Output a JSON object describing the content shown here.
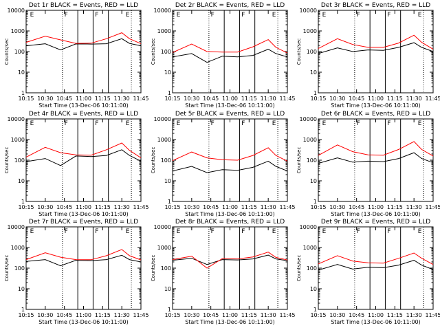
{
  "chart_data": [
    {
      "type": "line",
      "title": "Det 1r BLACK = Events, RED = LLD",
      "xlabel": "Start Time (13-Dec-06 10:11:00)",
      "ylabel": "Counts/sec",
      "x_ticks": [
        "10:15",
        "10:30",
        "10:45",
        "11:00",
        "11:15",
        "11:30",
        "11:45"
      ],
      "y_ticks": [
        "1",
        "10",
        "100",
        "1000",
        "10000"
      ],
      "xlim": [
        4,
        34
      ],
      "ylim": [
        1,
        10000
      ],
      "yscale": "log",
      "flag_marks": [
        "E",
        "F",
        "F",
        "E"
      ],
      "series": [
        {
          "color": "#000000",
          "x": [
            4,
            9,
            13,
            17,
            21,
            25,
            29,
            31,
            34
          ],
          "values": [
            190,
            240,
            120,
            235,
            230,
            240,
            420,
            250,
            190
          ]
        },
        {
          "color": "#ff0000",
          "x": [
            4,
            9,
            13,
            17,
            21,
            25,
            29,
            31,
            34
          ],
          "values": [
            280,
            560,
            370,
            250,
            255,
            420,
            820,
            420,
            240
          ]
        }
      ]
    },
    {
      "type": "line",
      "title": "Det 2r BLACK = Events, RED = LLD",
      "xlabel": "Start Time (13-Dec-06 10:11:00)",
      "ylabel": "Counts/sec",
      "x_ticks": [
        "10:15",
        "10:30",
        "10:45",
        "11:00",
        "11:15",
        "11:30",
        "11:45"
      ],
      "y_ticks": [
        "1",
        "10",
        "100",
        "1000",
        "10000"
      ],
      "xlim": [
        4,
        34
      ],
      "ylim": [
        1,
        10000
      ],
      "yscale": "log",
      "flag_marks": [
        "E",
        "F",
        "F",
        "E"
      ],
      "series": [
        {
          "color": "#000000",
          "x": [
            4,
            9,
            13,
            17,
            21,
            25,
            29,
            31,
            34
          ],
          "values": [
            55,
            80,
            30,
            60,
            55,
            65,
            130,
            80,
            55
          ]
        },
        {
          "color": "#ff0000",
          "x": [
            4,
            9,
            13,
            17,
            21,
            25,
            29,
            31,
            34
          ],
          "values": [
            90,
            230,
            100,
            95,
            95,
            170,
            380,
            160,
            85
          ]
        }
      ]
    },
    {
      "type": "line",
      "title": "Det 3r BLACK = Events, RED = LLD",
      "xlabel": "Start Time (13-Dec-06 10:11:00)",
      "ylabel": "Counts/sec",
      "x_ticks": [
        "10:15",
        "10:30",
        "10:45",
        "11:00",
        "11:15",
        "11:30",
        "11:45"
      ],
      "y_ticks": [
        "1",
        "10",
        "100",
        "1000",
        "10000"
      ],
      "xlim": [
        4,
        34
      ],
      "ylim": [
        1,
        10000
      ],
      "yscale": "log",
      "flag_marks": [
        "E",
        "F",
        "F",
        "E"
      ],
      "series": [
        {
          "color": "#000000",
          "x": [
            4,
            9,
            13,
            17,
            21,
            25,
            29,
            31,
            34
          ],
          "values": [
            80,
            150,
            100,
            120,
            115,
            160,
            270,
            160,
            100
          ]
        },
        {
          "color": "#ff0000",
          "x": [
            4,
            9,
            13,
            17,
            21,
            25,
            29,
            31,
            34
          ],
          "values": [
            140,
            420,
            220,
            160,
            160,
            260,
            620,
            280,
            130
          ]
        }
      ]
    },
    {
      "type": "line",
      "title": "Det 4r BLACK = Events, RED = LLD",
      "xlabel": "Start Time (13-Dec-06 10:11:00)",
      "ylabel": "Counts/sec",
      "x_ticks": [
        "10:15",
        "10:30",
        "10:45",
        "11:00",
        "11:15",
        "11:30",
        "11:45"
      ],
      "y_ticks": [
        "1",
        "10",
        "100",
        "1000",
        "10000"
      ],
      "xlim": [
        4,
        34
      ],
      "ylim": [
        1,
        10000
      ],
      "yscale": "log",
      "flag_marks": [
        "E",
        "F",
        "F",
        "E"
      ],
      "series": [
        {
          "color": "#000000",
          "x": [
            4,
            9,
            13,
            17,
            21,
            25,
            29,
            31,
            34
          ],
          "values": [
            85,
            120,
            55,
            160,
            150,
            170,
            320,
            170,
            90
          ]
        },
        {
          "color": "#ff0000",
          "x": [
            4,
            9,
            13,
            17,
            21,
            25,
            29,
            31,
            34
          ],
          "values": [
            140,
            420,
            230,
            180,
            175,
            320,
            680,
            300,
            130
          ]
        }
      ]
    },
    {
      "type": "line",
      "title": "Det 5r BLACK = Events, RED = LLD",
      "xlabel": "Start Time (13-Dec-06 10:11:00)",
      "ylabel": "Counts/sec",
      "x_ticks": [
        "10:15",
        "10:30",
        "10:45",
        "11:00",
        "11:15",
        "11:30",
        "11:45"
      ],
      "y_ticks": [
        "1",
        "10",
        "100",
        "1000",
        "10000"
      ],
      "xlim": [
        4,
        34
      ],
      "ylim": [
        1,
        10000
      ],
      "yscale": "log",
      "flag_marks": [
        "E",
        "F",
        "F",
        "E"
      ],
      "series": [
        {
          "color": "#000000",
          "x": [
            4,
            9,
            13,
            17,
            21,
            25,
            29,
            31,
            34
          ],
          "values": [
            30,
            50,
            25,
            35,
            32,
            45,
            90,
            50,
            30
          ]
        },
        {
          "color": "#ff0000",
          "x": [
            4,
            9,
            13,
            17,
            21,
            25,
            29,
            31,
            34
          ],
          "values": [
            95,
            250,
            130,
            105,
            100,
            170,
            400,
            170,
            90
          ]
        }
      ]
    },
    {
      "type": "line",
      "title": "Det 6r BLACK = Events, RED = LLD",
      "xlabel": "Start Time (13-Dec-06 10:11:00)",
      "ylabel": "Counts/sec",
      "x_ticks": [
        "10:15",
        "10:30",
        "10:45",
        "11:00",
        "11:15",
        "11:30",
        "11:45"
      ],
      "y_ticks": [
        "1",
        "10",
        "100",
        "1000",
        "10000"
      ],
      "xlim": [
        4,
        34
      ],
      "ylim": [
        1,
        10000
      ],
      "yscale": "log",
      "flag_marks": [
        "E",
        "F",
        "F",
        "E"
      ],
      "series": [
        {
          "color": "#000000",
          "x": [
            4,
            9,
            13,
            17,
            21,
            25,
            29,
            31,
            34
          ],
          "values": [
            70,
            130,
            80,
            90,
            85,
            120,
            230,
            120,
            75
          ]
        },
        {
          "color": "#ff0000",
          "x": [
            4,
            9,
            13,
            17,
            21,
            25,
            29,
            31,
            34
          ],
          "values": [
            170,
            550,
            260,
            180,
            175,
            330,
            800,
            330,
            160
          ]
        }
      ]
    },
    {
      "type": "line",
      "title": "Det 7r BLACK = Events, RED = LLD",
      "xlabel": "Start Time (13-Dec-06 10:11:00)",
      "ylabel": "Counts/sec",
      "x_ticks": [
        "10:15",
        "10:30",
        "10:45",
        "11:00",
        "11:15",
        "11:30",
        "11:45"
      ],
      "y_ticks": [
        "1",
        "10",
        "100",
        "1000",
        "10000"
      ],
      "xlim": [
        4,
        34
      ],
      "ylim": [
        1,
        10000
      ],
      "yscale": "log",
      "flag_marks": [
        "E",
        "F",
        "F",
        "E"
      ],
      "series": [
        {
          "color": "#000000",
          "x": [
            4,
            9,
            13,
            17,
            21,
            25,
            29,
            31,
            34
          ],
          "values": [
            210,
            260,
            130,
            240,
            230,
            260,
            420,
            260,
            200
          ]
        },
        {
          "color": "#ff0000",
          "x": [
            4,
            9,
            13,
            17,
            21,
            25,
            29,
            31,
            34
          ],
          "values": [
            260,
            560,
            340,
            260,
            255,
            400,
            800,
            400,
            250
          ]
        }
      ]
    },
    {
      "type": "line",
      "title": "Det 8r BLACK = Events, RED = LLD",
      "xlabel": "Start Time (13-Dec-06 10:11:00)",
      "ylabel": "Counts/sec",
      "x_ticks": [
        "10:15",
        "10:30",
        "10:45",
        "11:00",
        "11:15",
        "11:30",
        "11:45"
      ],
      "y_ticks": [
        "1",
        "10",
        "100",
        "1000",
        "10000"
      ],
      "xlim": [
        4,
        34
      ],
      "ylim": [
        1,
        10000
      ],
      "yscale": "log",
      "flag_marks": [
        "E",
        "F",
        "F",
        "E"
      ],
      "series": [
        {
          "color": "#000000",
          "x": [
            4,
            9,
            13,
            17,
            21,
            25,
            29,
            31,
            34
          ],
          "values": [
            240,
            300,
            150,
            260,
            250,
            280,
            430,
            280,
            230
          ]
        },
        {
          "color": "#ff0000",
          "x": [
            4,
            9,
            13,
            17,
            21,
            25,
            29,
            31,
            34
          ],
          "values": [
            260,
            380,
            100,
            290,
            280,
            350,
            600,
            330,
            250
          ]
        }
      ]
    },
    {
      "type": "line",
      "title": "Det 9r BLACK = Events, RED = LLD",
      "xlabel": "Start Time (13-Dec-06 10:11:00)",
      "ylabel": "Counts/sec",
      "x_ticks": [
        "10:15",
        "10:30",
        "10:45",
        "11:00",
        "11:15",
        "11:30",
        "11:45"
      ],
      "y_ticks": [
        "1",
        "10",
        "100",
        "1000",
        "10000"
      ],
      "xlim": [
        4,
        34
      ],
      "ylim": [
        1,
        10000
      ],
      "yscale": "log",
      "flag_marks": [
        "E",
        "F",
        "F",
        "E"
      ],
      "series": [
        {
          "color": "#000000",
          "x": [
            4,
            9,
            13,
            17,
            21,
            25,
            29,
            31,
            34
          ],
          "values": [
            80,
            150,
            90,
            110,
            105,
            140,
            240,
            140,
            85
          ]
        },
        {
          "color": "#ff0000",
          "x": [
            4,
            9,
            13,
            17,
            21,
            25,
            29,
            31,
            34
          ],
          "values": [
            160,
            400,
            220,
            180,
            175,
            300,
            540,
            300,
            150
          ]
        }
      ]
    }
  ]
}
